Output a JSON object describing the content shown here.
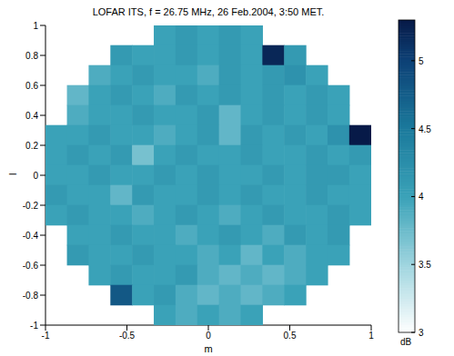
{
  "chart_data": {
    "type": "heatmap",
    "title": "LOFAR ITS, f = 26.75 MHz, 26 Feb.2004, 3:50 MET.",
    "xlabel": "m",
    "ylabel": "l",
    "x": [
      -0.9333,
      -0.8,
      -0.6667,
      -0.5333,
      -0.4,
      -0.2667,
      -0.1333,
      0,
      0.1333,
      0.2667,
      0.4,
      0.5333,
      0.6667,
      0.8,
      0.9333
    ],
    "y": [
      0.9333,
      0.8,
      0.6667,
      0.5333,
      0.4,
      0.2667,
      0.1333,
      0,
      -0.1333,
      -0.2667,
      -0.4,
      -0.5333,
      -0.6667,
      -0.8,
      -0.9333
    ],
    "values": [
      [
        null,
        null,
        null,
        null,
        null,
        4.0,
        4.1,
        4.0,
        4.1,
        4.0,
        null,
        null,
        null,
        null,
        null
      ],
      [
        null,
        null,
        null,
        4.1,
        4.0,
        4.0,
        4.1,
        4.0,
        4.1,
        4.0,
        5.2,
        4.1,
        null,
        null,
        null
      ],
      [
        null,
        null,
        3.9,
        4.0,
        4.1,
        4.0,
        4.0,
        3.9,
        4.1,
        4.0,
        4.1,
        4.2,
        4.0,
        null,
        null
      ],
      [
        null,
        3.8,
        4.0,
        4.1,
        4.0,
        3.9,
        4.1,
        4.0,
        4.1,
        4.0,
        4.1,
        4.0,
        4.1,
        4.0,
        null
      ],
      [
        null,
        3.9,
        4.0,
        4.0,
        4.1,
        4.0,
        4.0,
        4.1,
        3.8,
        4.0,
        4.1,
        4.0,
        4.1,
        4.0,
        null
      ],
      [
        4.0,
        4.0,
        4.1,
        4.0,
        4.0,
        3.9,
        4.0,
        4.1,
        3.8,
        4.1,
        4.0,
        4.1,
        4.0,
        4.2,
        5.3
      ],
      [
        4.0,
        4.1,
        4.0,
        4.1,
        3.7,
        4.0,
        4.1,
        4.0,
        4.0,
        4.1,
        4.0,
        4.0,
        4.1,
        4.0,
        4.1
      ],
      [
        4.0,
        4.0,
        4.1,
        4.0,
        4.0,
        4.1,
        4.0,
        4.1,
        4.0,
        4.0,
        4.1,
        4.0,
        4.1,
        4.1,
        4.0
      ],
      [
        4.1,
        4.0,
        4.0,
        3.8,
        4.1,
        4.0,
        4.0,
        4.1,
        4.0,
        4.1,
        4.0,
        4.0,
        4.1,
        4.0,
        4.0
      ],
      [
        4.0,
        4.1,
        4.0,
        4.0,
        3.9,
        4.0,
        4.1,
        4.0,
        3.9,
        4.0,
        4.1,
        4.0,
        4.0,
        4.1,
        4.0
      ],
      [
        null,
        4.0,
        4.0,
        4.1,
        4.0,
        4.0,
        3.9,
        4.0,
        4.1,
        4.0,
        3.9,
        4.1,
        4.0,
        4.1,
        null
      ],
      [
        null,
        4.1,
        4.0,
        4.0,
        4.1,
        4.0,
        4.0,
        3.9,
        4.0,
        3.8,
        4.0,
        3.9,
        4.0,
        4.0,
        null
      ],
      [
        null,
        null,
        4.0,
        4.1,
        4.0,
        4.0,
        4.1,
        3.9,
        3.8,
        3.9,
        3.8,
        3.9,
        4.0,
        null,
        null
      ],
      [
        null,
        null,
        null,
        4.8,
        4.0,
        4.1,
        3.9,
        3.8,
        3.9,
        3.8,
        3.9,
        4.0,
        null,
        null,
        null
      ],
      [
        null,
        null,
        null,
        null,
        null,
        4.0,
        3.9,
        4.0,
        3.9,
        4.0,
        null,
        null,
        null,
        null,
        null
      ]
    ],
    "xlim": [
      -1,
      1
    ],
    "ylim": [
      -1,
      1
    ],
    "xticks": [
      -1,
      -0.5,
      0,
      0.5,
      1
    ],
    "yticks": [
      -1,
      -0.8,
      -0.6,
      -0.4,
      -0.2,
      0,
      0.2,
      0.4,
      0.6,
      0.8,
      1
    ],
    "colorbar": {
      "range": [
        3,
        5.3
      ],
      "ticks": [
        3,
        3.5,
        4,
        4.5,
        5
      ],
      "label": "dB"
    }
  }
}
